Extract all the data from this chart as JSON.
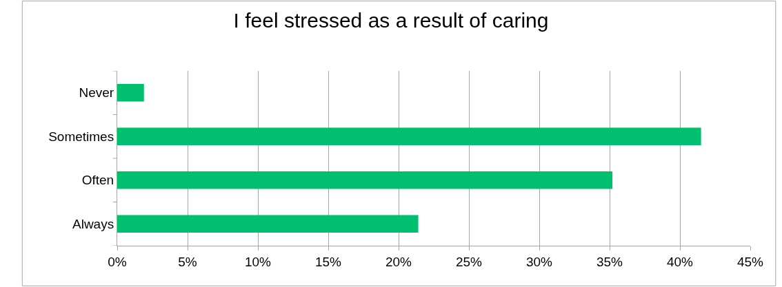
{
  "chart_data": {
    "type": "bar",
    "orientation": "horizontal",
    "title": "I feel stressed as a result of caring",
    "categories": [
      "Never",
      "Sometimes",
      "Often",
      "Always"
    ],
    "values": [
      1.9,
      41.5,
      35.2,
      21.4
    ],
    "color": "#00bf6f",
    "xlim": [
      0,
      45
    ],
    "xticks": [
      {
        "value": 0,
        "label": "0%"
      },
      {
        "value": 5,
        "label": "5%"
      },
      {
        "value": 10,
        "label": "10%"
      },
      {
        "value": 15,
        "label": "15%"
      },
      {
        "value": 20,
        "label": "20%"
      },
      {
        "value": 25,
        "label": "25%"
      },
      {
        "value": 30,
        "label": "30%"
      },
      {
        "value": 35,
        "label": "35%"
      },
      {
        "value": 40,
        "label": "40%"
      },
      {
        "value": 45,
        "label": "45%"
      }
    ],
    "grid": "x",
    "legend": false
  }
}
